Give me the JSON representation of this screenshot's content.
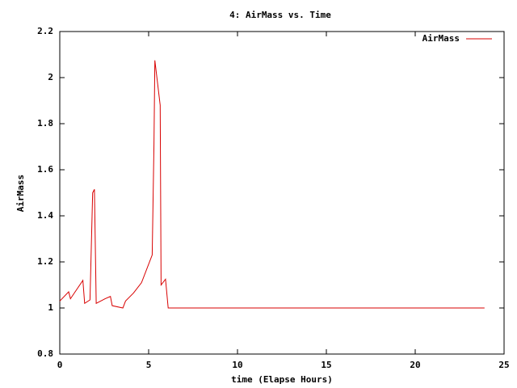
{
  "chart_data": {
    "type": "line",
    "title": "4: AirMass vs. Time",
    "x_label": "time (Elapse Hours)",
    "y_label": "AirMass",
    "x": [
      0,
      0.5,
      0.6,
      1.3,
      1.4,
      1.7,
      1.85,
      1.95,
      2.05,
      2.55,
      2.85,
      2.95,
      3.55,
      3.7,
      4.15,
      4.6,
      5.2,
      5.3,
      5.35,
      5.65,
      5.7,
      5.95,
      6.1,
      23.9
    ],
    "series": [
      {
        "name": "AirMass",
        "color": "#d80000",
        "values": [
          1.03,
          1.07,
          1.04,
          1.12,
          1.02,
          1.035,
          1.5,
          1.515,
          1.02,
          1.04,
          1.05,
          1.01,
          1.0,
          1.03,
          1.065,
          1.11,
          1.23,
          1.71,
          2.075,
          1.88,
          1.1,
          1.125,
          1.0,
          1.0
        ]
      }
    ],
    "xlim": [
      0,
      25
    ],
    "ylim": [
      0.8,
      2.2
    ],
    "xticks": [
      0,
      5,
      10,
      15,
      20,
      25
    ],
    "yticks": [
      0.8,
      1,
      1.2,
      1.4,
      1.6,
      1.8,
      2,
      2.2
    ],
    "grid": false,
    "legend": "top-right"
  }
}
